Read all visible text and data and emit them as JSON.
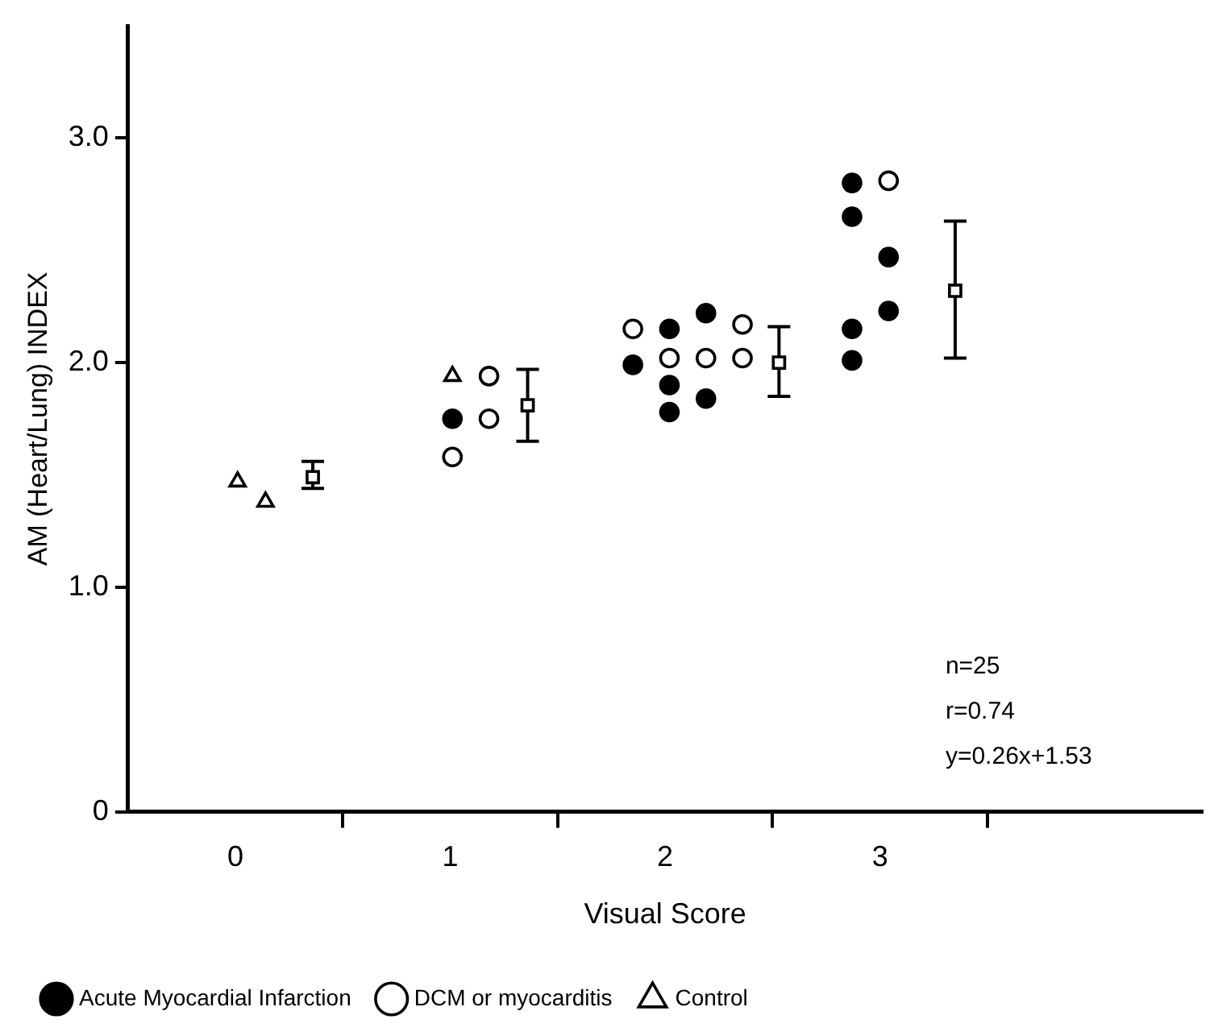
{
  "chart_data": {
    "type": "scatter",
    "xlabel": "Visual Score",
    "ylabel": "AM (Heart/Lung) INDEX",
    "xlim": [
      -0.5,
      4.5
    ],
    "xticks": [
      {
        "value": 0,
        "label": "0"
      },
      {
        "value": 0.5,
        "label": null
      },
      {
        "value": 1,
        "label": "1"
      },
      {
        "value": 1.5,
        "label": null
      },
      {
        "value": 2,
        "label": "2"
      },
      {
        "value": 2.5,
        "label": null
      },
      {
        "value": 3,
        "label": "3"
      },
      {
        "value": 3.5,
        "label": null
      }
    ],
    "ylim": [
      0,
      3.5
    ],
    "yticks": [
      {
        "value": 0,
        "label": "0"
      },
      {
        "value": 1,
        "label": "1.0"
      },
      {
        "value": 2,
        "label": "2.0"
      },
      {
        "value": 3,
        "label": "3.0"
      }
    ],
    "grid": false,
    "legend": "bottom",
    "series": [
      {
        "name": "Acute Myocardial Infarction",
        "color": "#000000",
        "marker": "circle",
        "x": [
          1.01,
          1.85,
          2.02,
          2.02,
          2.02,
          2.19,
          2.19,
          2.87,
          2.87,
          2.87,
          2.87,
          3.04,
          3.04
        ],
        "values": [
          1.75,
          1.99,
          2.15,
          1.9,
          1.78,
          2.22,
          1.84,
          2.8,
          2.65,
          2.15,
          2.01,
          2.47,
          2.23
        ]
      },
      {
        "name": "DCM or myocarditis",
        "color": "#ffffff",
        "marker": "circle",
        "x": [
          1.01,
          1.18,
          1.18,
          1.85,
          2.02,
          2.19,
          2.36,
          2.36,
          3.04
        ],
        "values": [
          1.58,
          1.94,
          1.75,
          2.15,
          2.02,
          2.02,
          2.17,
          2.02,
          2.81
        ]
      },
      {
        "name": "Control",
        "color": "#ffffff",
        "marker": "triangle",
        "x": [
          0.01,
          0.14,
          1.01
        ],
        "values": [
          1.47,
          1.38,
          1.94
        ]
      },
      {
        "color": "#ffffff",
        "marker": "square",
        "x": [
          0.36,
          1.36,
          2.53,
          3.35
        ],
        "values": [
          1.49,
          1.81,
          2.0,
          2.32
        ],
        "errors": [
          [
            1.44,
            1.56
          ],
          [
            1.65,
            1.97
          ],
          [
            1.85,
            2.16
          ],
          [
            2.02,
            2.63
          ]
        ]
      }
    ],
    "annotations": [
      "n=25",
      "r=0.74",
      "y=0.26x+1.53"
    ]
  }
}
